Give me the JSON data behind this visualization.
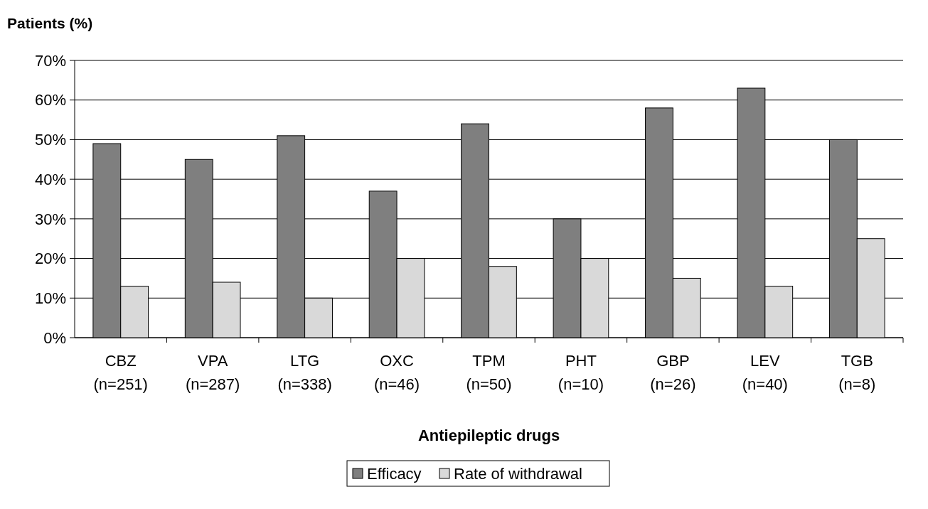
{
  "chart_data": {
    "type": "bar",
    "xlabel": "Antiepileptic drugs",
    "ylabel": "Patients (%)",
    "categories": [
      "CBZ\n(n=251)",
      "VPA\n(n=287)",
      "LTG\n(n=338)",
      "OXC\n(n=46)",
      "TPM\n(n=50)",
      "PHT\n(n=10)",
      "GBP\n(n=26)",
      "LEV\n(n=40)",
      "TGB\n(n=8)"
    ],
    "series": [
      {
        "name": "Efficacy",
        "color": "#7f7f7f",
        "values": [
          49,
          45,
          51,
          37,
          54,
          30,
          58,
          63,
          50
        ]
      },
      {
        "name": "Rate of withdrawal",
        "color": "#d9d9d9",
        "values": [
          13,
          14,
          10,
          20,
          18,
          20,
          15,
          13,
          25
        ]
      }
    ],
    "ylim": [
      0,
      70
    ],
    "yticks": [
      {
        "value": 0,
        "label": "0%"
      },
      {
        "value": 10,
        "label": "10%"
      },
      {
        "value": 20,
        "label": "20%"
      },
      {
        "value": 30,
        "label": "30%"
      },
      {
        "value": 40,
        "label": "40%"
      },
      {
        "value": 50,
        "label": "50%"
      },
      {
        "value": 60,
        "label": "60%"
      },
      {
        "value": 70,
        "label": "70%"
      }
    ],
    "grid": "y",
    "legend": "bottom"
  }
}
